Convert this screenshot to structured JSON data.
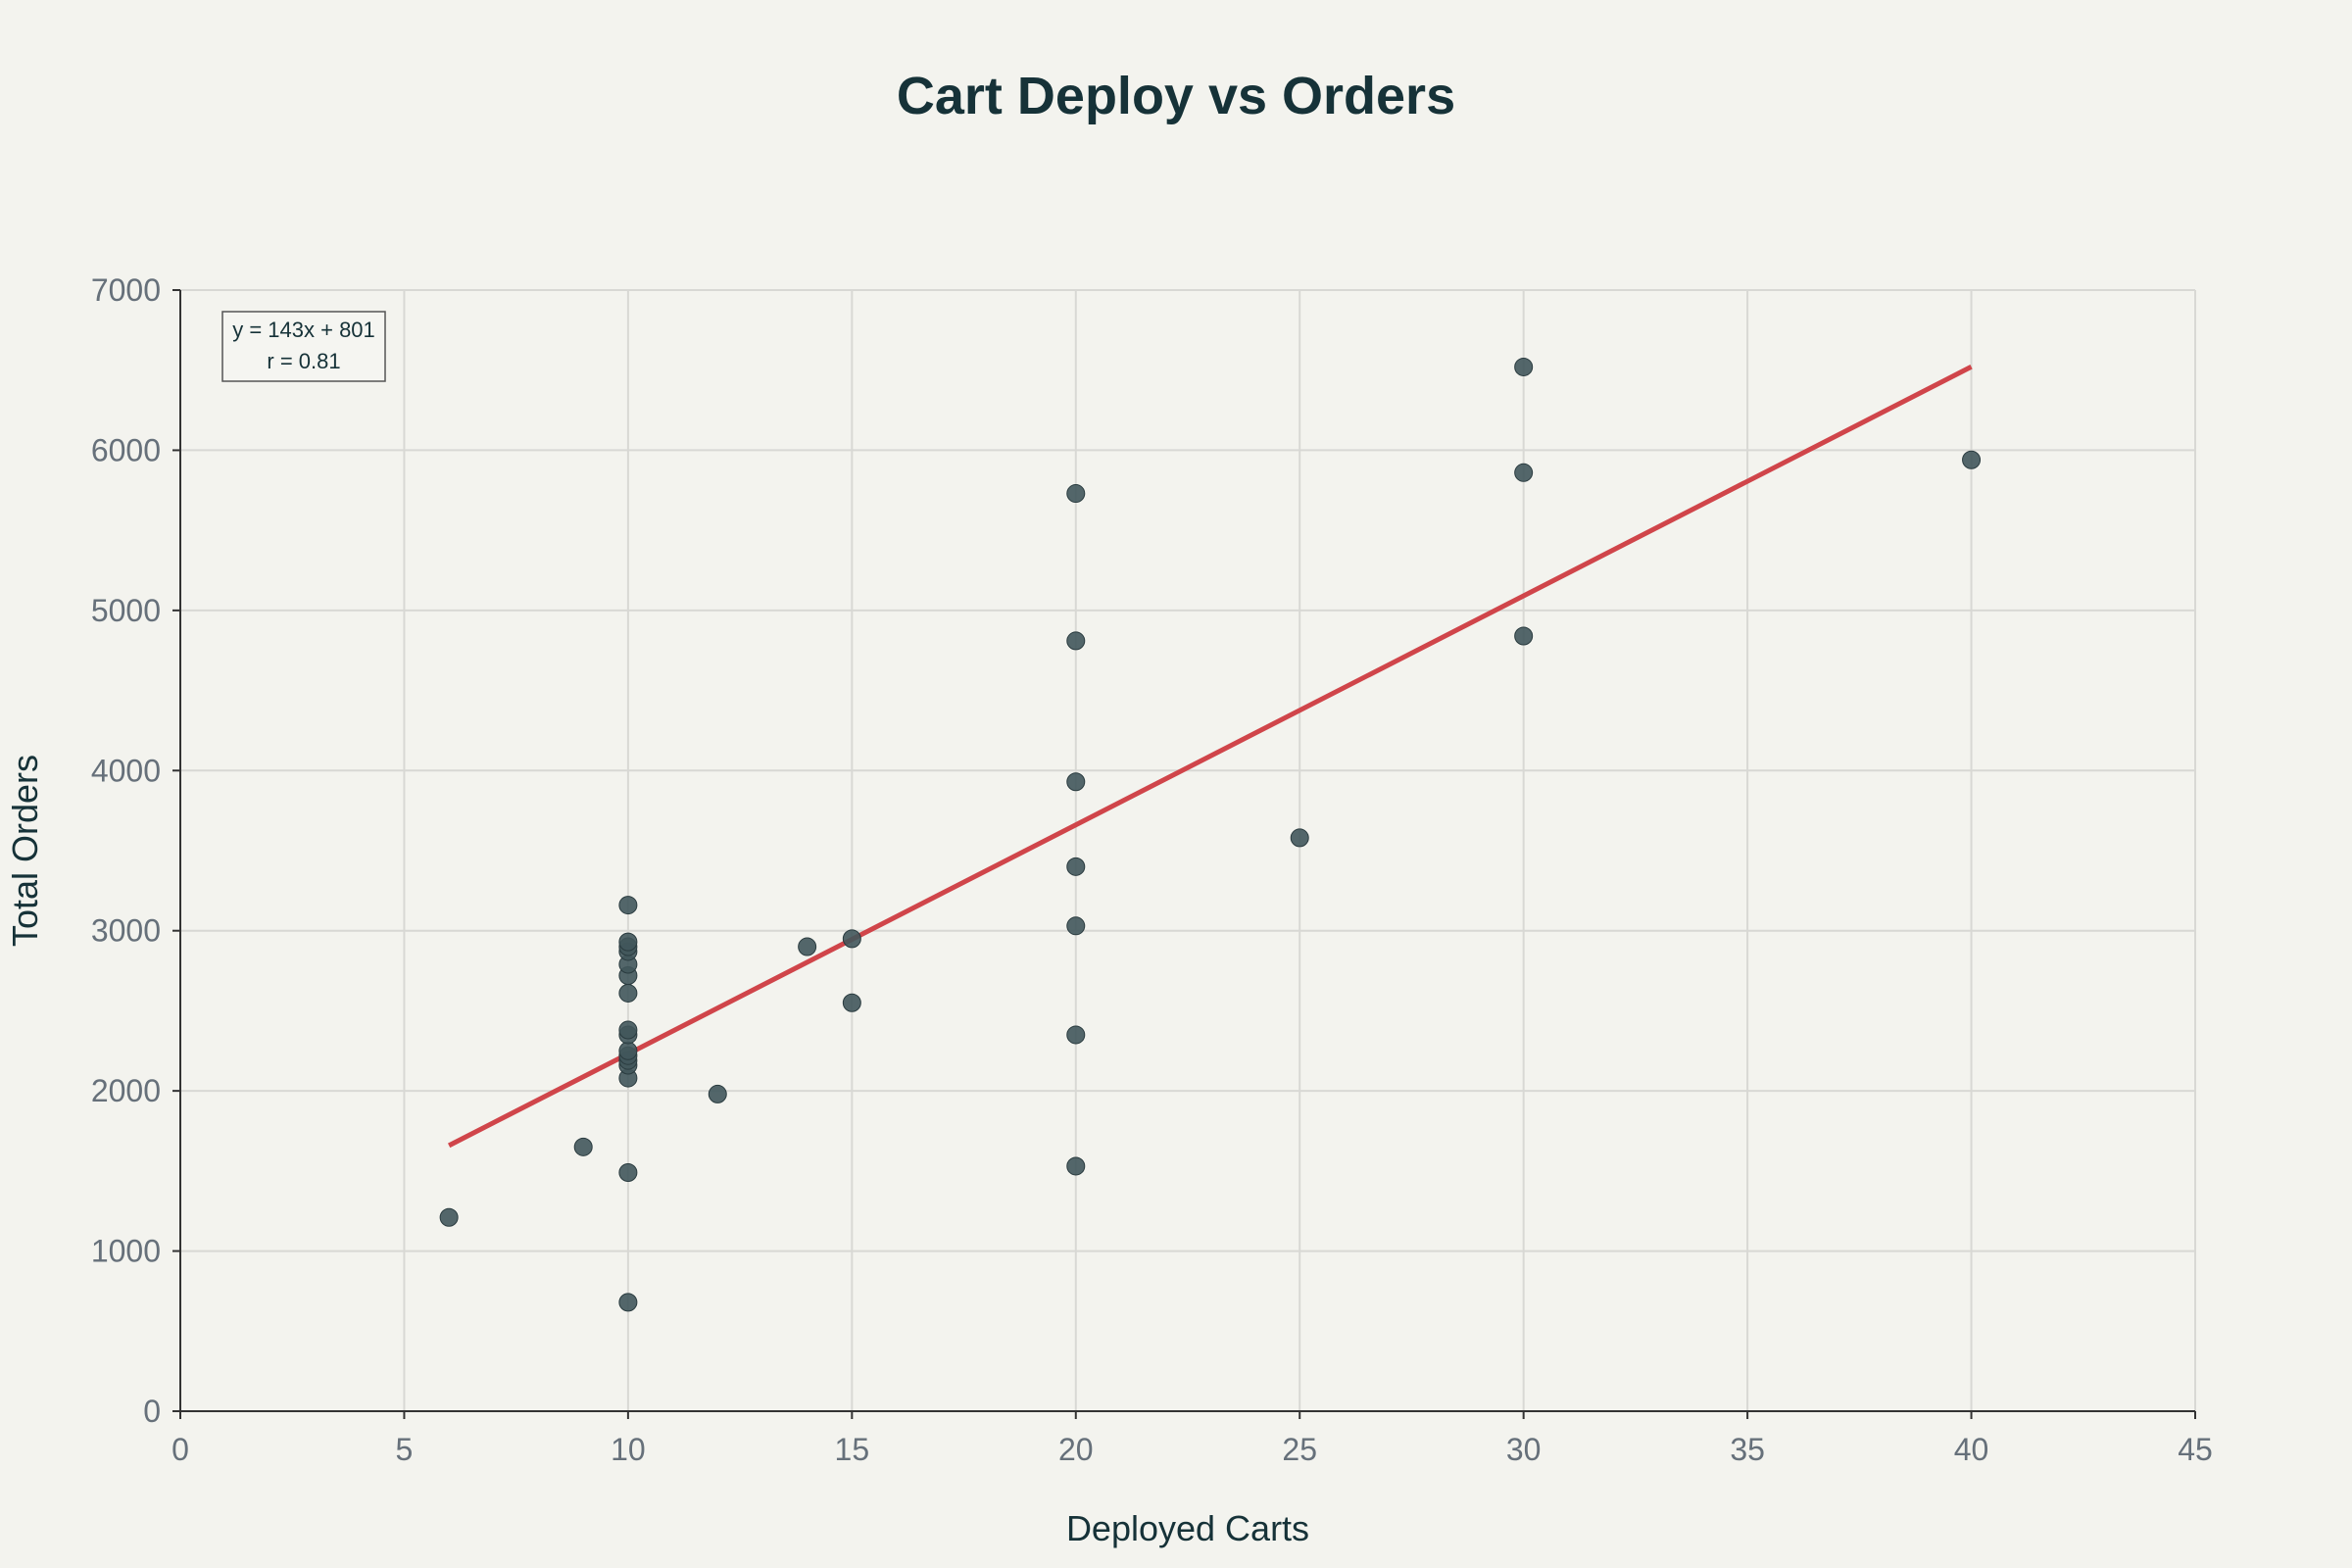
{
  "chart_data": {
    "type": "scatter",
    "title": "Cart Deploy vs Orders",
    "xlabel": "Deployed Carts",
    "ylabel": "Total Orders",
    "xlim": [
      0,
      45
    ],
    "ylim": [
      0,
      7000
    ],
    "x_ticks": [
      0,
      5,
      10,
      15,
      20,
      25,
      30,
      35,
      40,
      45
    ],
    "y_ticks": [
      0,
      1000,
      2000,
      3000,
      4000,
      5000,
      6000,
      7000
    ],
    "grid": true,
    "colors": {
      "points": "#41575b",
      "fit_line": "#d0454a",
      "background": "#f3f3ee"
    },
    "points": [
      {
        "x": 6,
        "y": 1210
      },
      {
        "x": 9,
        "y": 1650
      },
      {
        "x": 10,
        "y": 680
      },
      {
        "x": 10,
        "y": 1490
      },
      {
        "x": 10,
        "y": 2080
      },
      {
        "x": 10,
        "y": 2160
      },
      {
        "x": 10,
        "y": 2190
      },
      {
        "x": 10,
        "y": 2220
      },
      {
        "x": 10,
        "y": 2250
      },
      {
        "x": 10,
        "y": 2350
      },
      {
        "x": 10,
        "y": 2380
      },
      {
        "x": 10,
        "y": 2610
      },
      {
        "x": 10,
        "y": 2720
      },
      {
        "x": 10,
        "y": 2790
      },
      {
        "x": 10,
        "y": 2870
      },
      {
        "x": 10,
        "y": 2900
      },
      {
        "x": 10,
        "y": 2930
      },
      {
        "x": 10,
        "y": 3160
      },
      {
        "x": 12,
        "y": 1980
      },
      {
        "x": 14,
        "y": 2900
      },
      {
        "x": 15,
        "y": 2550
      },
      {
        "x": 15,
        "y": 2950
      },
      {
        "x": 20,
        "y": 1530
      },
      {
        "x": 20,
        "y": 2350
      },
      {
        "x": 20,
        "y": 3030
      },
      {
        "x": 20,
        "y": 3400
      },
      {
        "x": 20,
        "y": 3930
      },
      {
        "x": 20,
        "y": 4810
      },
      {
        "x": 20,
        "y": 5730
      },
      {
        "x": 25,
        "y": 3580
      },
      {
        "x": 30,
        "y": 4840
      },
      {
        "x": 30,
        "y": 5860
      },
      {
        "x": 30,
        "y": 6520
      },
      {
        "x": 40,
        "y": 5940
      }
    ],
    "trendline": {
      "slope": 143,
      "intercept": 801,
      "x_start": 6,
      "x_end": 40
    },
    "annotation": {
      "line1": "y = 143x + 801",
      "line2": "r = 0.81"
    }
  }
}
